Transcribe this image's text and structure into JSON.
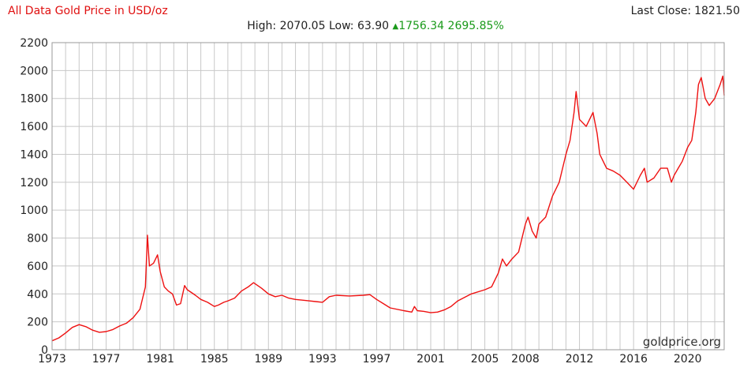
{
  "header": {
    "title": "All Data Gold Price in USD/oz",
    "last_close_label": "Last Close:",
    "last_close_value": "1821.50",
    "high_label": "High:",
    "high_value": "2070.05",
    "low_label": "Low:",
    "low_value": "63.90",
    "change_value": "1756.34",
    "change_percent": "2695.85%",
    "change_icon": "up-triangle-icon"
  },
  "watermark": "goldprice.org",
  "colors": {
    "line": "#ee1111",
    "title": "#e01010",
    "up": "#1a9a1a",
    "grid": "#c8c8c8"
  },
  "chart_data": {
    "type": "line",
    "title": "All Data Gold Price in USD/oz",
    "xlabel": "",
    "ylabel": "",
    "xlim": [
      1973,
      2022.7
    ],
    "ylim": [
      0,
      2200
    ],
    "x_ticks": [
      "1973",
      "1977",
      "1981",
      "1985",
      "1989",
      "1993",
      "1997",
      "2001",
      "2005",
      "2008",
      "2012",
      "2016",
      "2020"
    ],
    "y_ticks": [
      0,
      200,
      400,
      600,
      800,
      1000,
      1200,
      1400,
      1600,
      1800,
      2000,
      2200
    ],
    "grid": true,
    "legend": "none",
    "series": [
      {
        "x": [
          1973.0,
          1973.5,
          1974.0,
          1974.5,
          1975.0,
          1975.5,
          1976.0,
          1976.5,
          1977.0,
          1977.5,
          1978.0,
          1978.5,
          1979.0,
          1979.5,
          1979.9,
          1980.05,
          1980.2,
          1980.5,
          1980.8,
          1981.0,
          1981.3,
          1981.6,
          1981.9,
          1982.2,
          1982.5,
          1982.8,
          1983.0,
          1983.3,
          1983.6,
          1984.0,
          1984.5,
          1985.0,
          1985.3,
          1985.7,
          1986.0,
          1986.5,
          1987.0,
          1987.5,
          1987.9,
          1988.5,
          1989.0,
          1989.5,
          1990.0,
          1990.5,
          1991.0,
          1992.0,
          1992.5,
          1993.0,
          1993.5,
          1994.0,
          1995.0,
          1996.0,
          1996.5,
          1997.0,
          1997.5,
          1998.0,
          1999.0,
          1999.6,
          1999.8,
          2000.0,
          2000.5,
          2001.0,
          2001.5,
          2002.0,
          2002.5,
          2003.0,
          2004.0,
          2005.0,
          2005.5,
          2006.0,
          2006.3,
          2006.6,
          2007.0,
          2007.5,
          2008.0,
          2008.2,
          2008.5,
          2008.8,
          2009.0,
          2009.5,
          2010.0,
          2010.5,
          2011.0,
          2011.3,
          2011.6,
          2011.75,
          2012.0,
          2012.5,
          2013.0,
          2013.3,
          2013.5,
          2014.0,
          2014.5,
          2015.0,
          2015.5,
          2016.0,
          2016.5,
          2016.8,
          2017.0,
          2017.5,
          2018.0,
          2018.5,
          2018.8,
          2019.0,
          2019.3,
          2019.6,
          2020.0,
          2020.3,
          2020.6,
          2020.8,
          2021.0,
          2021.3,
          2021.6,
          2022.0,
          2022.2,
          2022.4,
          2022.6,
          2022.7
        ],
        "values": [
          64,
          85,
          120,
          160,
          180,
          165,
          140,
          125,
          130,
          145,
          170,
          190,
          230,
          290,
          450,
          820,
          600,
          620,
          680,
          560,
          450,
          420,
          400,
          320,
          330,
          460,
          430,
          410,
          390,
          360,
          340,
          310,
          320,
          340,
          350,
          370,
          420,
          450,
          480,
          440,
          400,
          380,
          390,
          370,
          360,
          350,
          345,
          340,
          380,
          390,
          385,
          390,
          395,
          360,
          330,
          300,
          280,
          270,
          310,
          280,
          275,
          265,
          270,
          285,
          310,
          350,
          400,
          430,
          450,
          550,
          650,
          600,
          650,
          700,
          900,
          950,
          850,
          800,
          900,
          950,
          1100,
          1200,
          1400,
          1500,
          1700,
          1850,
          1650,
          1600,
          1700,
          1550,
          1400,
          1300,
          1280,
          1250,
          1200,
          1150,
          1250,
          1300,
          1200,
          1230,
          1300,
          1300,
          1200,
          1250,
          1300,
          1350,
          1450,
          1500,
          1700,
          1900,
          1950,
          1800,
          1750,
          1800,
          1850,
          1900,
          1960,
          1821.5
        ]
      }
    ]
  }
}
